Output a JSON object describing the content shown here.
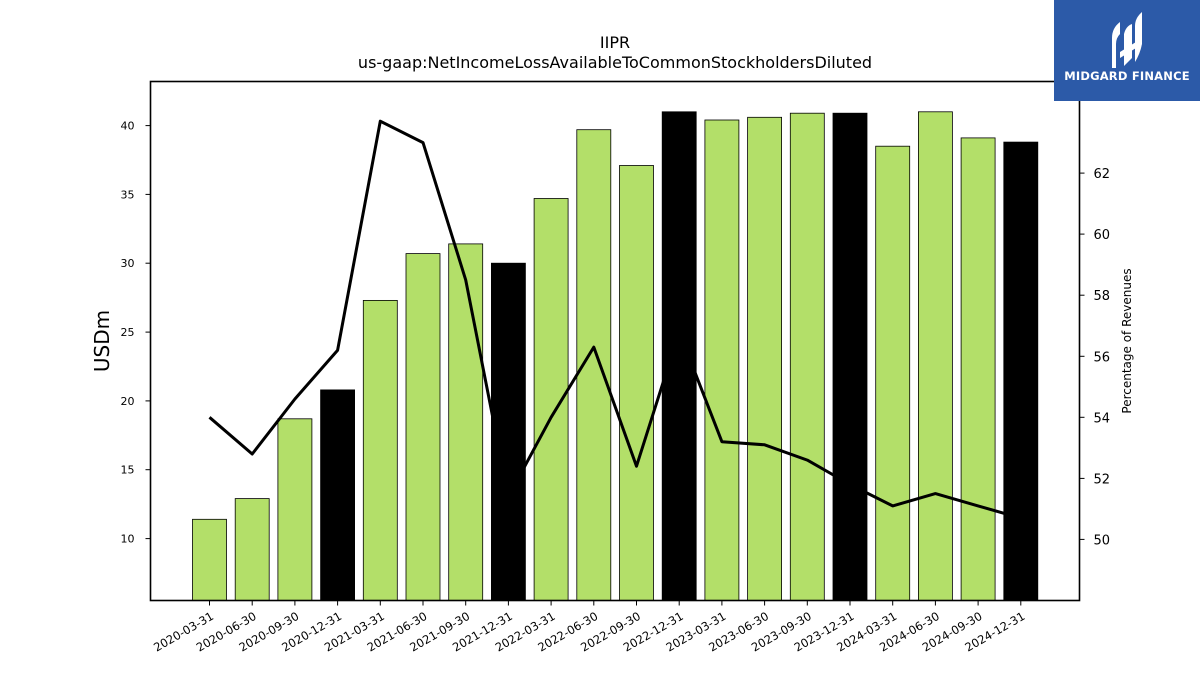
{
  "chart_data": {
    "type": "bar",
    "title": "IIPR",
    "subtitle": "us-gaap:NetIncomeLossAvailableToCommonStockholdersDiluted",
    "ylabel": "USDm",
    "y2label": "Percentage of Revenues",
    "ylim": [
      5.5,
      43.2
    ],
    "y2lim": [
      48.0,
      65.0
    ],
    "yticks": [
      10,
      15,
      20,
      25,
      30,
      35,
      40
    ],
    "y2ticks": [
      50,
      52,
      54,
      56,
      58,
      60,
      62
    ],
    "categories": [
      "2020-03-31",
      "2020-06-30",
      "2020-09-30",
      "2020-12-31",
      "2021-03-31",
      "2021-06-30",
      "2021-09-30",
      "2021-12-31",
      "2022-03-31",
      "2022-06-30",
      "2022-09-30",
      "2022-12-31",
      "2023-03-31",
      "2023-06-30",
      "2023-09-30",
      "2023-12-31",
      "2024-03-31",
      "2024-06-30",
      "2024-09-30",
      "2024-12-31"
    ],
    "series": [
      {
        "values": [
          11.4,
          12.9,
          18.7,
          20.8,
          27.3,
          30.7,
          31.4,
          30.0,
          34.7,
          39.7,
          37.1,
          41.0,
          40.4,
          40.6,
          40.9,
          40.9,
          38.5,
          41.0,
          39.1,
          38.8
        ]
      },
      {
        "type": "line",
        "axis": "right",
        "values": [
          54.0,
          52.8,
          54.6,
          56.2,
          63.7,
          63.0,
          58.5,
          51.4,
          54.0,
          56.3,
          52.4,
          56.8,
          53.2,
          53.1,
          52.6,
          51.8,
          51.1,
          51.5,
          51.1,
          50.7
        ]
      }
    ],
    "bar_colors": {
      "normal": "#b3df69",
      "year_end": "#000000",
      "edge": "#000000"
    },
    "line_color": "#000000"
  },
  "logo": {
    "text": "MIDGARD FINANCE",
    "background": "#2c5aa8"
  }
}
